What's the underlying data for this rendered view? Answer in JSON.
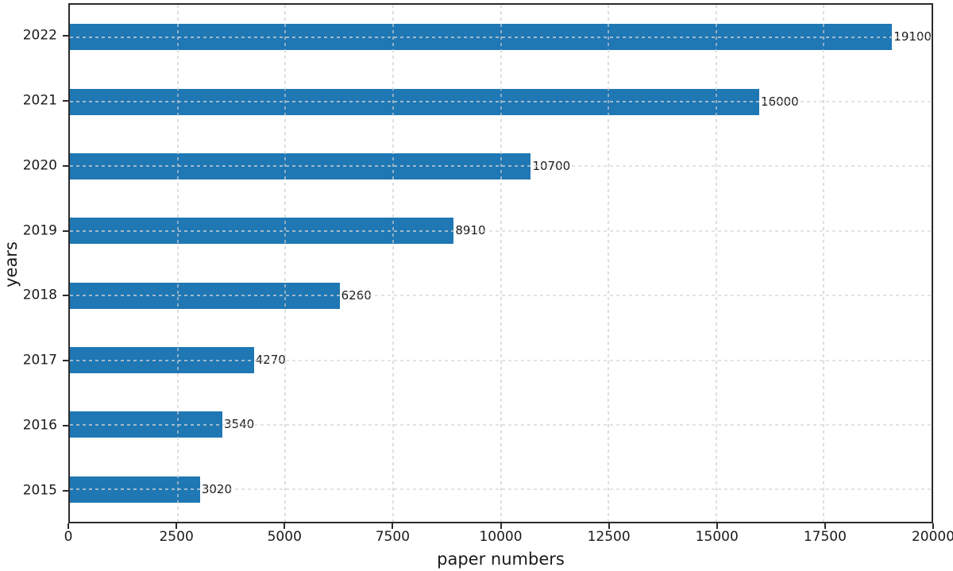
{
  "chart_data": {
    "type": "bar",
    "orientation": "horizontal",
    "title": "",
    "xlabel": "paper numbers",
    "ylabel": "years",
    "categories": [
      "2015",
      "2016",
      "2017",
      "2018",
      "2019",
      "2020",
      "2021",
      "2022"
    ],
    "values": [
      3020,
      3540,
      4270,
      6260,
      8910,
      10700,
      16000,
      19100
    ],
    "top_category": "2022",
    "xlim": [
      0,
      20000
    ],
    "xticks": [
      0,
      2500,
      5000,
      7500,
      10000,
      12500,
      15000,
      17500,
      20000
    ],
    "grid": "dashed, both axes, drawn over bars",
    "legend": "none",
    "bar_color": "#1f77b4",
    "spine_color": "#2b2b2b",
    "gridline_color": "#d7d7d7",
    "text_color": "#1a1a1a",
    "background_color": "#ffffff",
    "bar_value_labels": [
      "3020",
      "3540",
      "4270",
      "6260",
      "8910",
      "10700",
      "16000",
      "19100"
    ]
  }
}
